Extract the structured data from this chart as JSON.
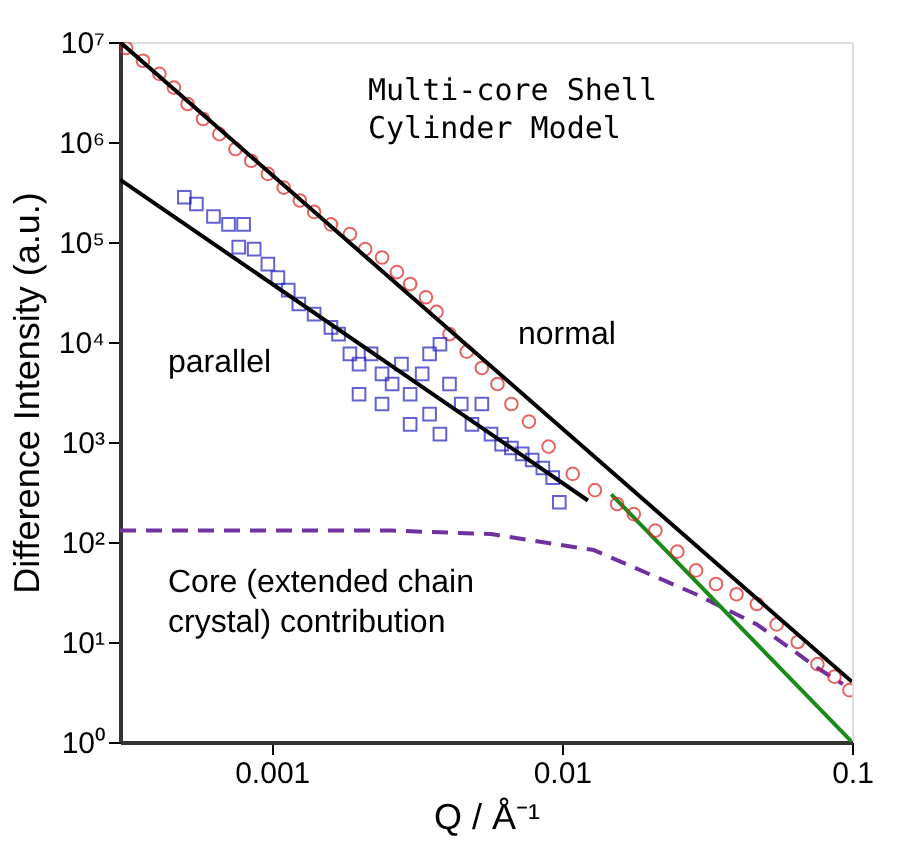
{
  "chart_data": {
    "type": "scatter",
    "xlabel": "Q / Å⁻¹",
    "ylabel": "Difference Intensity (a.u.)",
    "annotations": [
      "Multi-core Shell Cylinder Model"
    ],
    "log": "xy",
    "grid": false,
    "legend": false,
    "xlim": [
      0.0003,
      0.1
    ],
    "xticks": [
      0.001,
      0.01,
      0.1
    ],
    "ylim": [
      1,
      10000000
    ],
    "yticks": [
      {
        "value": 1,
        "label": "10⁰"
      },
      {
        "value": 10,
        "label": "10¹"
      },
      {
        "value": 100,
        "label": "10²"
      },
      {
        "value": 1000,
        "label": "10³"
      },
      {
        "value": 10000,
        "label": "10⁴"
      },
      {
        "value": 100000,
        "label": "10⁵"
      },
      {
        "value": 1000000,
        "label": "10⁶"
      },
      {
        "value": 10000000,
        "label": "10⁷"
      }
    ],
    "series": [
      {
        "type": "line",
        "color": "#7030a0",
        "line_style": "dashed",
        "name": "Core (extended chain crystal) contribution",
        "x": [
          0.0003,
          0.0026,
          0.0057,
          0.0129,
          0.029,
          0.047,
          0.076,
          0.093
        ],
        "values": [
          130,
          130,
          120,
          83,
          30,
          15,
          5.5,
          3.8
        ]
      },
      {
        "type": "line",
        "color": "#1a8a1a",
        "line_style": "solid",
        "x": [
          0.0148,
          0.1
        ],
        "values": [
          300,
          1
        ]
      },
      {
        "marker": "circle",
        "color": "#e02020",
        "name": "normal",
        "x": [
          0.000315,
          0.00036,
          0.00041,
          0.00046,
          0.000513,
          0.00058,
          0.00066,
          0.00075,
          0.00085,
          0.00097,
          0.0011,
          0.00125,
          0.0014,
          0.0016,
          0.00186,
          0.0021,
          0.0024,
          0.0027,
          0.003,
          0.0034,
          0.0037,
          0.0041,
          0.0047,
          0.0053,
          0.006,
          0.0067,
          0.0077,
          0.009,
          0.0109,
          0.013,
          0.0155,
          0.0177,
          0.021,
          0.025,
          0.029,
          0.034,
          0.04,
          0.047,
          0.055,
          0.065,
          0.076,
          0.087,
          0.098
        ],
        "values": [
          8700000,
          6500000,
          4800000,
          3500000,
          2400000,
          1700000,
          1200000,
          850000,
          650000,
          480000,
          350000,
          260000,
          200000,
          150000,
          120000,
          85000,
          70000,
          50000,
          38000,
          28000,
          20000,
          12000,
          8000,
          5500,
          3800,
          2400,
          1600,
          900,
          480,
          330,
          240,
          190,
          130,
          80,
          52,
          38,
          30,
          24,
          15,
          10,
          6,
          4.5,
          3.3
        ]
      },
      {
        "type": "line",
        "color": "#000000",
        "line_style": "solid",
        "x": [
          0.0003,
          0.1
        ],
        "values": [
          10000000,
          4
        ]
      },
      {
        "marker": "square",
        "color": "#2020c0",
        "name": "parallel",
        "x": [
          0.0005,
          0.00055,
          0.00063,
          0.00071,
          0.0008,
          0.00077,
          0.00087,
          0.00097,
          0.00105,
          0.00114,
          0.00124,
          0.0014,
          0.0016,
          0.0017,
          0.00186,
          0.002,
          0.0022,
          0.0024,
          0.0026,
          0.002,
          0.0024,
          0.0028,
          0.003,
          0.0033,
          0.0035,
          0.0038,
          0.0035,
          0.003,
          0.0041,
          0.0045,
          0.0049,
          0.0038,
          0.0053,
          0.0057,
          0.0062,
          0.0067,
          0.0073,
          0.0079,
          0.0086,
          0.0093,
          0.0098
        ],
        "values": [
          280000,
          240000,
          180000,
          150000,
          150000,
          89000,
          85000,
          60000,
          44000,
          33000,
          24000,
          19000,
          14000,
          12000,
          7600,
          6000,
          7600,
          4800,
          3800,
          3000,
          2400,
          6000,
          3000,
          4800,
          1900,
          9500,
          7600,
          1500,
          3800,
          2400,
          1500,
          1200,
          2400,
          1200,
          950,
          870,
          760,
          660,
          550,
          440,
          250
        ]
      },
      {
        "type": "line",
        "color": "#000000",
        "line_style": "solid",
        "x": [
          0.0003,
          0.0123
        ],
        "values": [
          420000,
          260
        ]
      }
    ]
  }
}
